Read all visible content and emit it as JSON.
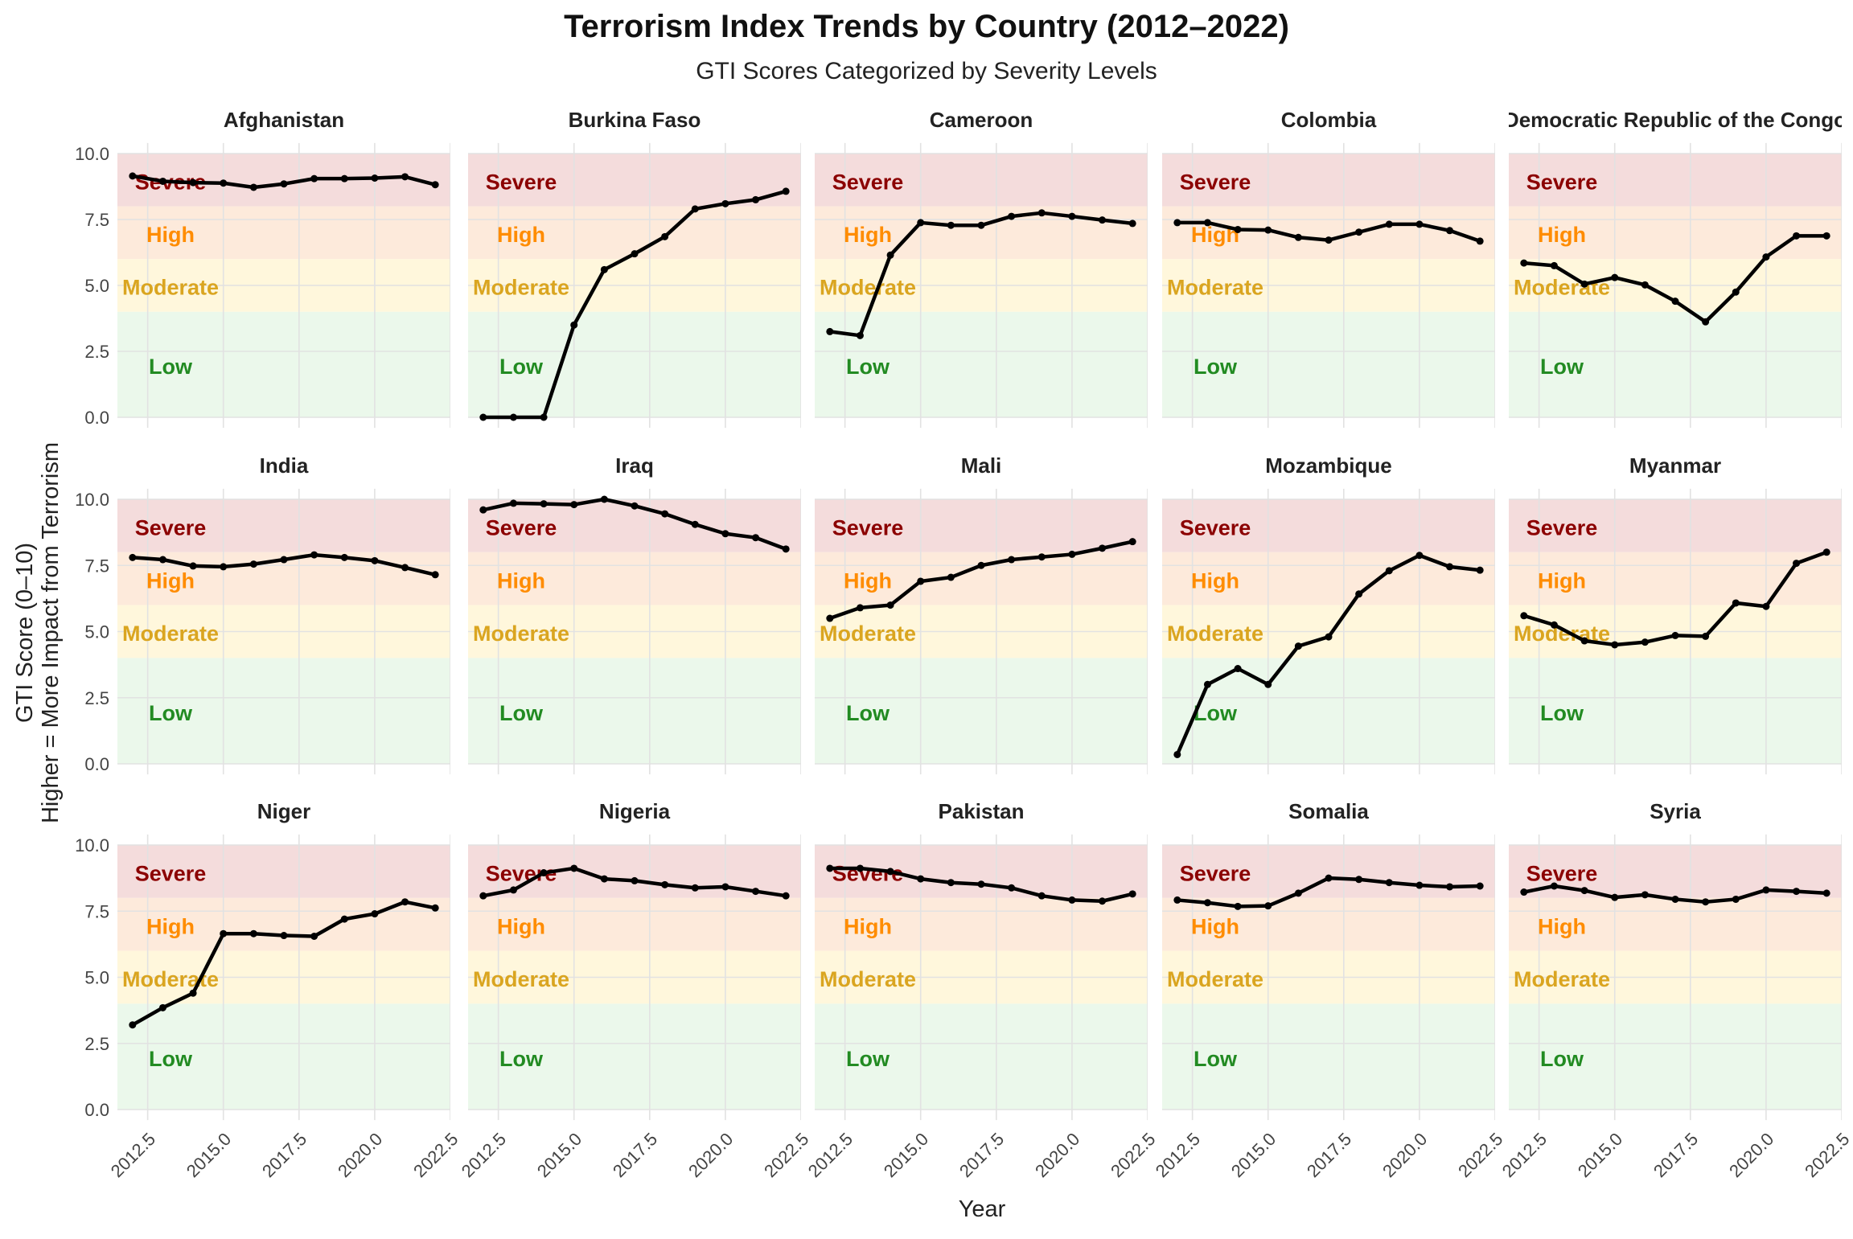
{
  "chart_data": {
    "type": "line",
    "title": "Terrorism Index Trends by Country (2012–2022)",
    "subtitle": "GTI Scores Categorized by Severity Levels",
    "xlabel": "Year",
    "ylabel": "GTI Score (0–10)\nHigher = More Impact from Terrorism",
    "facet_layout": "5 columns x 3 rows",
    "x": [
      2012,
      2013,
      2014,
      2015,
      2016,
      2017,
      2018,
      2019,
      2020,
      2021,
      2022
    ],
    "xlim": [
      2011.5,
      2022.5
    ],
    "ylim": [
      -0.4,
      10.4
    ],
    "x_ticks": [
      2012.5,
      2015.0,
      2017.5,
      2020.0,
      2022.5
    ],
    "x_tick_labels": [
      "2012.5",
      "2015.0",
      "2017.5",
      "2020.0",
      "2022.5"
    ],
    "y_ticks": [
      0,
      2.5,
      5,
      7.5,
      10
    ],
    "y_tick_labels": [
      "0.0",
      "2.5",
      "5.0",
      "7.5",
      "10.0"
    ],
    "grid": true,
    "severity_bands": [
      {
        "label": "Severe",
        "min": 8,
        "max": 10,
        "label_y": 8.95,
        "fill": "#f4dcdc",
        "text_color": "#8b0000"
      },
      {
        "label": "High",
        "min": 6,
        "max": 8,
        "label_y": 6.95,
        "fill": "#fdeadb",
        "text_color": "#ff8c00"
      },
      {
        "label": "Moderate",
        "min": 4,
        "max": 6,
        "label_y": 4.95,
        "fill": "#fff7dc",
        "text_color": "#daa520"
      },
      {
        "label": "Low",
        "min": 0,
        "max": 4,
        "label_y": 1.95,
        "fill": "#ebf8eb",
        "text_color": "#228b22"
      }
    ],
    "colors": {
      "line": "#000000",
      "grid": "#e2e2e2",
      "text": "#222222",
      "axis_text": "#444444"
    },
    "series": [
      {
        "name": "Afghanistan",
        "values": [
          9.15,
          8.95,
          8.9,
          8.88,
          8.72,
          8.85,
          9.05,
          9.05,
          9.07,
          9.12,
          8.82
        ]
      },
      {
        "name": "Burkina Faso",
        "values": [
          0.0,
          0.0,
          0.0,
          3.5,
          5.6,
          6.2,
          6.85,
          7.9,
          8.1,
          8.25,
          8.57
        ]
      },
      {
        "name": "Cameroon",
        "values": [
          3.25,
          3.1,
          6.15,
          7.38,
          7.28,
          7.28,
          7.62,
          7.75,
          7.62,
          7.48,
          7.35
        ]
      },
      {
        "name": "Colombia",
        "values": [
          7.38,
          7.38,
          7.12,
          7.1,
          6.82,
          6.72,
          7.02,
          7.32,
          7.32,
          7.08,
          6.68
        ]
      },
      {
        "name": "Democratic Republic of the Congo",
        "values": [
          5.85,
          5.75,
          5.05,
          5.3,
          5.02,
          4.4,
          3.62,
          4.75,
          6.08,
          6.88,
          6.88
        ]
      },
      {
        "name": "India",
        "values": [
          7.8,
          7.72,
          7.48,
          7.45,
          7.55,
          7.72,
          7.9,
          7.8,
          7.68,
          7.42,
          7.15
        ]
      },
      {
        "name": "Iraq",
        "values": [
          9.6,
          9.85,
          9.83,
          9.8,
          10.0,
          9.75,
          9.45,
          9.05,
          8.7,
          8.55,
          8.12
        ]
      },
      {
        "name": "Mali",
        "values": [
          5.5,
          5.9,
          6.0,
          6.9,
          7.05,
          7.5,
          7.72,
          7.82,
          7.92,
          8.15,
          8.4
        ]
      },
      {
        "name": "Mozambique",
        "values": [
          0.35,
          3.0,
          3.6,
          3.0,
          4.45,
          4.8,
          6.42,
          7.3,
          7.88,
          7.45,
          7.32
        ]
      },
      {
        "name": "Myanmar",
        "values": [
          5.6,
          5.25,
          4.65,
          4.5,
          4.6,
          4.85,
          4.82,
          6.08,
          5.95,
          7.58,
          8.0
        ]
      },
      {
        "name": "Niger",
        "values": [
          3.2,
          3.85,
          4.4,
          6.65,
          6.65,
          6.58,
          6.55,
          7.2,
          7.4,
          7.85,
          7.62
        ]
      },
      {
        "name": "Nigeria",
        "values": [
          8.08,
          8.3,
          8.95,
          9.12,
          8.72,
          8.65,
          8.5,
          8.38,
          8.42,
          8.25,
          8.08
        ]
      },
      {
        "name": "Pakistan",
        "values": [
          9.12,
          9.12,
          9.0,
          8.72,
          8.58,
          8.52,
          8.38,
          8.08,
          7.92,
          7.88,
          8.15
        ]
      },
      {
        "name": "Somalia",
        "values": [
          7.92,
          7.82,
          7.68,
          7.7,
          8.18,
          8.75,
          8.7,
          8.58,
          8.48,
          8.42,
          8.45
        ]
      },
      {
        "name": "Syria",
        "values": [
          8.22,
          8.45,
          8.28,
          8.02,
          8.12,
          7.95,
          7.85,
          7.95,
          8.3,
          8.25,
          8.18
        ]
      }
    ]
  }
}
